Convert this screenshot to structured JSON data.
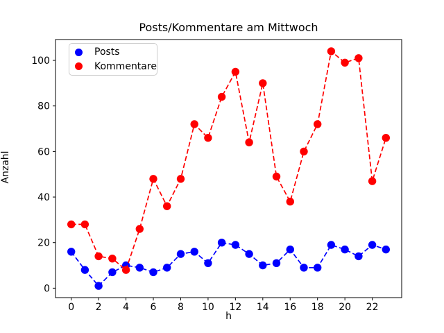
{
  "chart_data": {
    "type": "line",
    "title": "Posts/Kommentare am Mittwoch",
    "xlabel": "h",
    "ylabel": "Anzahl",
    "x": [
      0,
      1,
      2,
      3,
      4,
      5,
      6,
      7,
      8,
      9,
      10,
      11,
      12,
      13,
      14,
      15,
      16,
      17,
      18,
      19,
      20,
      21,
      22,
      23
    ],
    "series": [
      {
        "name": "Posts",
        "color": "#0000ff",
        "linestyle": "dashed",
        "marker": "circle",
        "values": [
          16,
          8,
          1,
          7,
          10,
          9,
          7,
          9,
          15,
          16,
          11,
          20,
          19,
          15,
          10,
          11,
          17,
          9,
          9,
          19,
          17,
          14,
          19,
          17
        ]
      },
      {
        "name": "Kommentare",
        "color": "#ff0000",
        "linestyle": "dashed",
        "marker": "circle",
        "values": [
          28,
          28,
          14,
          13,
          8,
          26,
          48,
          36,
          48,
          72,
          66,
          84,
          95,
          64,
          90,
          49,
          38,
          60,
          72,
          104,
          99,
          101,
          47,
          66
        ]
      }
    ],
    "xticks": [
      0,
      2,
      4,
      6,
      8,
      10,
      12,
      14,
      16,
      18,
      20,
      22
    ],
    "yticks": [
      0,
      20,
      40,
      60,
      80,
      100
    ],
    "xlim": [
      -1.15,
      24.15
    ],
    "ylim": [
      -4.15,
      109.15
    ],
    "grid": false,
    "legend_position": "upper left",
    "axis_color": "#000000",
    "background": "#ffffff"
  }
}
